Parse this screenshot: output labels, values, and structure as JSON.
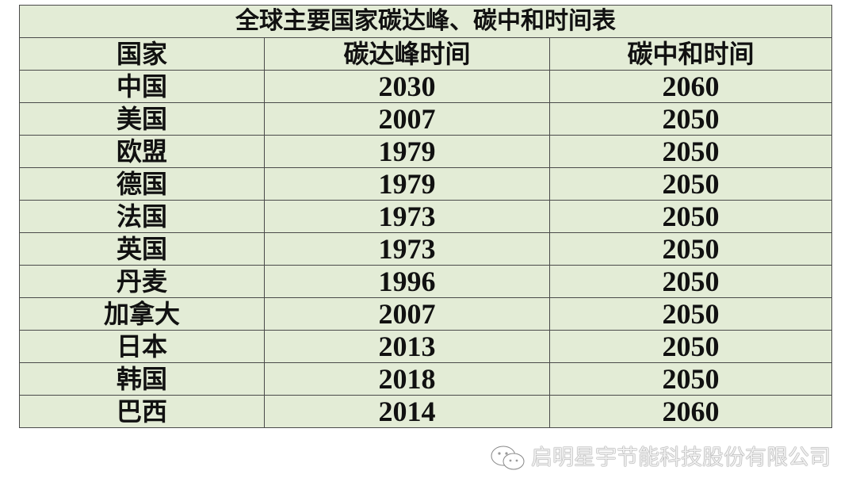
{
  "title": "全球主要国家碳达峰、碳中和时间表",
  "headers": [
    "国家",
    "碳达峰时间",
    "碳中和时间"
  ],
  "rows": [
    [
      "中国",
      "2030",
      "2060"
    ],
    [
      "美国",
      "2007",
      "2050"
    ],
    [
      "欧盟",
      "1979",
      "2050"
    ],
    [
      "德国",
      "1979",
      "2050"
    ],
    [
      "法国",
      "1973",
      "2050"
    ],
    [
      "英国",
      "1973",
      "2050"
    ],
    [
      "丹麦",
      "1996",
      "2050"
    ],
    [
      "加拿大",
      "2007",
      "2050"
    ],
    [
      "日本",
      "2013",
      "2050"
    ],
    [
      "韩国",
      "2018",
      "2050"
    ],
    [
      "巴西",
      "2014",
      "2060"
    ]
  ],
  "watermark": {
    "icon": "wechat-icon",
    "text": "启明星宇节能科技股份有限公司"
  },
  "colors": {
    "table_bg": "#e3ecd6",
    "border": "#4a4a4a"
  }
}
